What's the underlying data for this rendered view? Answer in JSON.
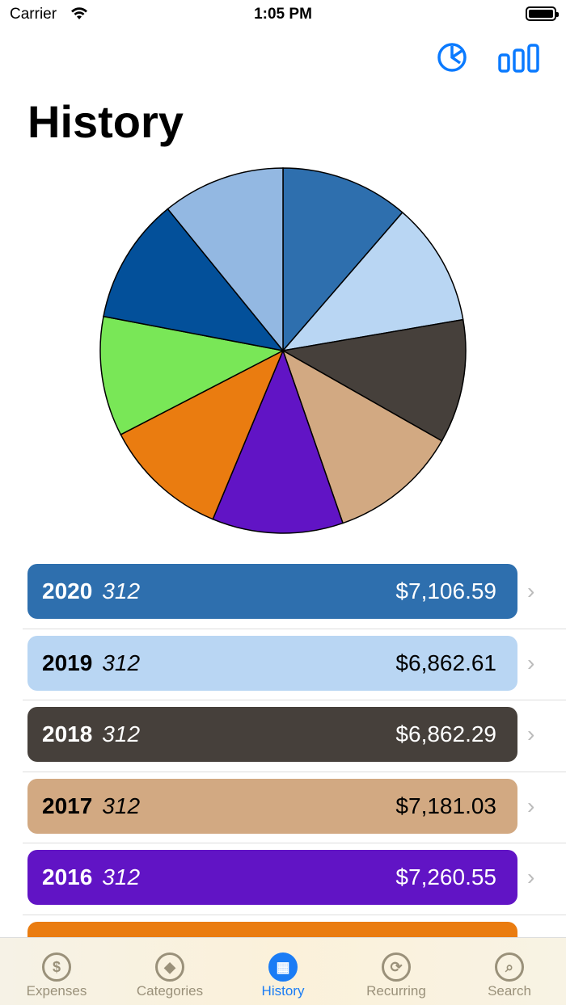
{
  "status": {
    "carrier": "Carrier",
    "time": "1:05 PM"
  },
  "nav": {
    "title": "History",
    "accent": "#0a7aff",
    "icons": [
      "pie-chart-icon",
      "bar-chart-icon"
    ]
  },
  "chart_data": {
    "type": "pie",
    "slices": [
      {
        "label": "2020",
        "value": 7106.59,
        "color": "#2e6fae"
      },
      {
        "label": "2019",
        "value": 6862.61,
        "color": "#b9d6f3"
      },
      {
        "label": "2018",
        "value": 6862.29,
        "color": "#46403b"
      },
      {
        "label": "2017",
        "value": 7181.03,
        "color": "#d2a982"
      },
      {
        "label": "2016",
        "value": 7260.55,
        "color": "#6114c5"
      },
      {
        "value": 6970,
        "color": "#ea7c10"
      },
      {
        "value": 6650,
        "color": "#79e757"
      },
      {
        "value": 6980,
        "color": "#03509a"
      },
      {
        "value": 6810,
        "color": "#93b8e2"
      }
    ]
  },
  "rows": [
    {
      "year": "2020",
      "count": "312",
      "amount": "$7,106.59",
      "color": "#2e6fae",
      "text": "#fff"
    },
    {
      "year": "2019",
      "count": "312",
      "amount": "$6,862.61",
      "color": "#b9d6f3",
      "text": "#000"
    },
    {
      "year": "2018",
      "count": "312",
      "amount": "$6,862.29",
      "color": "#46403b",
      "text": "#fff"
    },
    {
      "year": "2017",
      "count": "312",
      "amount": "$7,181.03",
      "color": "#d2a982",
      "text": "#000"
    },
    {
      "year": "2016",
      "count": "312",
      "amount": "$7,260.55",
      "color": "#6114c5",
      "text": "#fff"
    },
    {
      "year": "",
      "count": "",
      "amount": "",
      "color": "#ea7c10",
      "text": "#fff"
    }
  ],
  "tabs": [
    {
      "label": "Expenses",
      "icon": "$"
    },
    {
      "label": "Categories",
      "icon": "◆"
    },
    {
      "label": "History",
      "icon": "▦",
      "active": true
    },
    {
      "label": "Recurring",
      "icon": "⟳"
    },
    {
      "label": "Search",
      "icon": "⌕"
    }
  ]
}
